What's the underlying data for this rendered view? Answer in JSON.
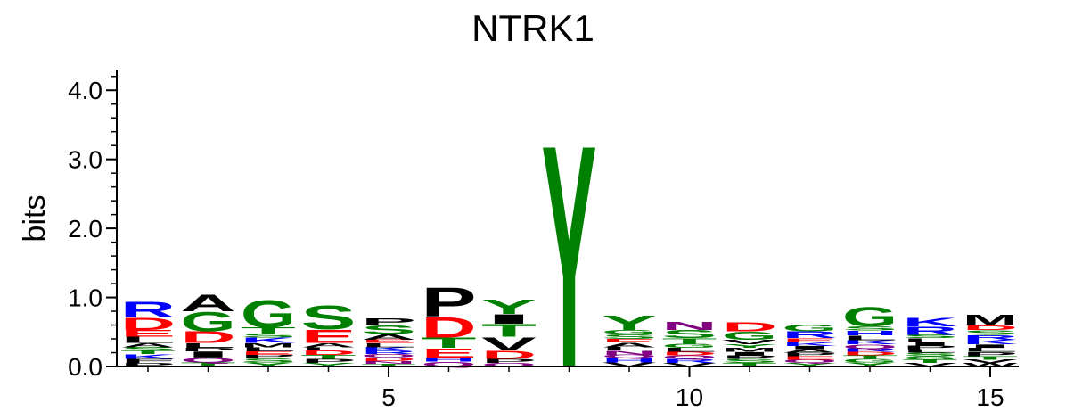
{
  "chart_data": {
    "type": "sequence-logo",
    "title": "NTRK1",
    "ylabel": "bits",
    "xlabel": "",
    "ylim": [
      0,
      4.3
    ],
    "y_ticks": [
      "0.0",
      "1.0",
      "2.0",
      "3.0",
      "4.0"
    ],
    "y_tick_values": [
      0,
      1,
      2,
      3,
      4
    ],
    "x_ticks": [
      "5",
      "10",
      "15"
    ],
    "x_tick_values": [
      5,
      10,
      15
    ],
    "colors": {
      "R": "#0000ff",
      "K": "#0000ff",
      "H": "#0000ff",
      "D": "#ff0000",
      "E": "#ff0000",
      "G": "#008000",
      "S": "#008000",
      "T": "#008000",
      "Y": "#008000",
      "C": "#008000",
      "N": "#800080",
      "Q": "#800080",
      "A": "#000000",
      "P": "#000000",
      "V": "#000000",
      "I": "#000000",
      "L": "#000000",
      "M": "#000000",
      "F": "#000000",
      "W": "#000000"
    },
    "positions": [
      {
        "position": 1,
        "letters": [
          [
            "P",
            0.05
          ],
          [
            "F",
            0.06
          ],
          [
            "K",
            0.07
          ],
          [
            "T",
            0.05
          ],
          [
            "S",
            0.05
          ],
          [
            "A",
            0.06
          ],
          [
            "L",
            0.09
          ],
          [
            "E",
            0.1
          ],
          [
            "D",
            0.18
          ],
          [
            "R",
            0.23
          ]
        ]
      },
      {
        "position": 2,
        "letters": [
          [
            "T",
            0.06
          ],
          [
            "Q",
            0.07
          ],
          [
            "I",
            0.09
          ],
          [
            "P",
            0.05
          ],
          [
            "L",
            0.07
          ],
          [
            "D",
            0.17
          ],
          [
            "G",
            0.29
          ],
          [
            "A",
            0.25
          ]
        ]
      },
      {
        "position": 3,
        "letters": [
          [
            "Y",
            0.06
          ],
          [
            "S",
            0.06
          ],
          [
            "P",
            0.05
          ],
          [
            "E",
            0.05
          ],
          [
            "L",
            0.06
          ],
          [
            "M",
            0.06
          ],
          [
            "K",
            0.08
          ],
          [
            "S",
            0.06
          ],
          [
            "T",
            0.09
          ],
          [
            "G",
            0.4
          ]
        ]
      },
      {
        "position": 4,
        "letters": [
          [
            "Y",
            0.05
          ],
          [
            "P",
            0.06
          ],
          [
            "T",
            0.06
          ],
          [
            "D",
            0.07
          ],
          [
            "L",
            0.04
          ],
          [
            "A",
            0.06
          ],
          [
            "E",
            0.2
          ],
          [
            "S",
            0.35
          ]
        ]
      },
      {
        "position": 5,
        "letters": [
          [
            "T",
            0.04
          ],
          [
            "N",
            0.04
          ],
          [
            "D",
            0.05
          ],
          [
            "Q",
            0.05
          ],
          [
            "R",
            0.05
          ],
          [
            "K",
            0.05
          ],
          [
            "L",
            0.06
          ],
          [
            "E",
            0.05
          ],
          [
            "A",
            0.08
          ],
          [
            "S",
            0.13
          ],
          [
            "P",
            0.1
          ]
        ]
      },
      {
        "position": 6,
        "letters": [
          [
            "Q",
            0.07
          ],
          [
            "H",
            0.06
          ],
          [
            "E",
            0.14
          ],
          [
            "T",
            0.15
          ],
          [
            "D",
            0.3
          ],
          [
            "P",
            0.43
          ]
        ]
      },
      {
        "position": 7,
        "letters": [
          [
            "Q",
            0.05
          ],
          [
            "P",
            0.06
          ],
          [
            "D",
            0.12
          ],
          [
            "V",
            0.2
          ],
          [
            "T",
            0.19
          ],
          [
            "I",
            0.14
          ],
          [
            "Y",
            0.21
          ]
        ]
      },
      {
        "position": 8,
        "letters": [
          [
            "Y",
            3.3
          ]
        ]
      },
      {
        "position": 9,
        "letters": [
          [
            "V",
            0.06
          ],
          [
            "H",
            0.06
          ],
          [
            "Q",
            0.05
          ],
          [
            "N",
            0.06
          ],
          [
            "L",
            0.05
          ],
          [
            "A",
            0.07
          ],
          [
            "E",
            0.05
          ],
          [
            "S",
            0.07
          ],
          [
            "G",
            0.06
          ],
          [
            "Y",
            0.21
          ]
        ]
      },
      {
        "position": 10,
        "letters": [
          [
            "V",
            0.05
          ],
          [
            "R",
            0.06
          ],
          [
            "Q",
            0.05
          ],
          [
            "D",
            0.05
          ],
          [
            "L",
            0.06
          ],
          [
            "G",
            0.06
          ],
          [
            "T",
            0.08
          ],
          [
            "S",
            0.12
          ],
          [
            "N",
            0.12
          ]
        ]
      },
      {
        "position": 11,
        "letters": [
          [
            "T",
            0.05
          ],
          [
            "S",
            0.06
          ],
          [
            "P",
            0.05
          ],
          [
            "I",
            0.05
          ],
          [
            "M",
            0.06
          ],
          [
            "Y",
            0.05
          ],
          [
            "V",
            0.07
          ],
          [
            "G",
            0.12
          ],
          [
            "D",
            0.14
          ]
        ]
      },
      {
        "position": 12,
        "letters": [
          [
            "Y",
            0.05
          ],
          [
            "Q",
            0.05
          ],
          [
            "E",
            0.05
          ],
          [
            "P",
            0.05
          ],
          [
            "A",
            0.05
          ],
          [
            "I",
            0.05
          ],
          [
            "K",
            0.05
          ],
          [
            "E",
            0.06
          ],
          [
            "R",
            0.1
          ],
          [
            "G",
            0.1
          ]
        ]
      },
      {
        "position": 13,
        "letters": [
          [
            "Y",
            0.06
          ],
          [
            "G",
            0.05
          ],
          [
            "T",
            0.05
          ],
          [
            "D",
            0.05
          ],
          [
            "R",
            0.05
          ],
          [
            "Q",
            0.06
          ],
          [
            "K",
            0.06
          ],
          [
            "L",
            0.07
          ],
          [
            "H",
            0.07
          ],
          [
            "S",
            0.06
          ],
          [
            "G",
            0.29
          ]
        ]
      },
      {
        "position": 14,
        "letters": [
          [
            "V",
            0.05
          ],
          [
            "T",
            0.05
          ],
          [
            "G",
            0.05
          ],
          [
            "S",
            0.05
          ],
          [
            "L",
            0.05
          ],
          [
            "P",
            0.05
          ],
          [
            "I",
            0.05
          ],
          [
            "L",
            0.06
          ],
          [
            "S",
            0.05
          ],
          [
            "R",
            0.12
          ],
          [
            "K",
            0.13
          ]
        ]
      },
      {
        "position": 15,
        "letters": [
          [
            "W",
            0.05
          ],
          [
            "V",
            0.05
          ],
          [
            "T",
            0.05
          ],
          [
            "P",
            0.06
          ],
          [
            "L",
            0.06
          ],
          [
            "I",
            0.05
          ],
          [
            "K",
            0.07
          ],
          [
            "R",
            0.07
          ],
          [
            "S",
            0.07
          ],
          [
            "D",
            0.07
          ],
          [
            "M",
            0.15
          ]
        ]
      }
    ]
  }
}
